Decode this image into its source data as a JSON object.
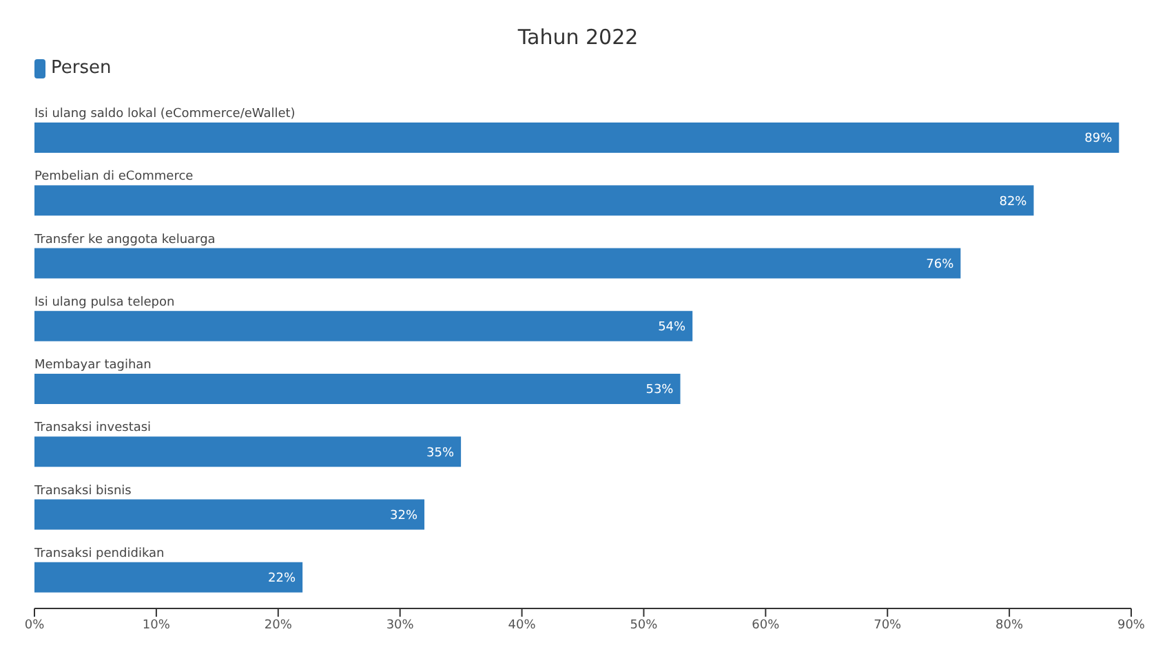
{
  "chart_data": {
    "type": "bar",
    "orientation": "horizontal",
    "title": "Tahun 2022",
    "categories": [
      "Isi ulang saldo lokal (eCommerce/eWallet)",
      "Pembelian di eCommerce",
      "Transfer ke anggota keluarga",
      "Isi ulang pulsa telepon",
      "Membayar tagihan",
      "Transaksi investasi",
      "Transaksi bisnis",
      "Transaksi pendidikan"
    ],
    "series": [
      {
        "name": "Persen",
        "color": "#2e7dbf",
        "values": [
          89,
          82,
          76,
          54,
          53,
          35,
          32,
          22
        ],
        "value_labels": [
          "89%",
          "82%",
          "76%",
          "54%",
          "53%",
          "35%",
          "32%",
          "22%"
        ]
      }
    ],
    "xlim": [
      0,
      90
    ],
    "xticks": [
      {
        "value": 0,
        "label": "0%"
      },
      {
        "value": 10,
        "label": "10%"
      },
      {
        "value": 20,
        "label": "20%"
      },
      {
        "value": 30,
        "label": "30%"
      },
      {
        "value": 40,
        "label": "40%"
      },
      {
        "value": 50,
        "label": "50%"
      },
      {
        "value": 60,
        "label": "60%"
      },
      {
        "value": 70,
        "label": "70%"
      },
      {
        "value": 80,
        "label": "80%"
      },
      {
        "value": 90,
        "label": "90%"
      }
    ],
    "grid": false,
    "legend": "top left"
  }
}
